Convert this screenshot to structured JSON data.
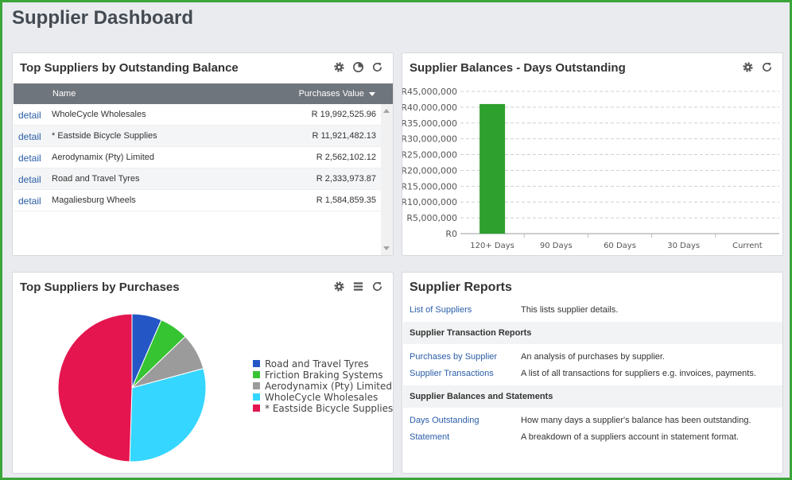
{
  "page": {
    "title": "Supplier Dashboard"
  },
  "colors": {
    "accent_border": "#3aa63a",
    "link": "#2a5da8",
    "table_header": "#6f757c",
    "bar": "#2ea02e"
  },
  "top_outstanding": {
    "title": "Top Suppliers by Outstanding Balance",
    "icons": [
      "gear-icon",
      "pie-chart-icon",
      "refresh-icon"
    ],
    "columns": {
      "name": "Name",
      "value": "Purchases Value"
    },
    "rows": [
      {
        "link": "detail",
        "name": "WholeCycle Wholesales",
        "value": "R 19,992,525.96"
      },
      {
        "link": "detail",
        "name": "* Eastside Bicycle Supplies",
        "value": "R 11,921,482.13"
      },
      {
        "link": "detail",
        "name": "Aerodynamix (Pty) Limited",
        "value": "R 2,562,102.12"
      },
      {
        "link": "detail",
        "name": "Road and Travel Tyres",
        "value": "R 2,333,973.87"
      },
      {
        "link": "detail",
        "name": "Magaliesburg Wheels",
        "value": "R 1,584,859.35"
      }
    ]
  },
  "days_outstanding": {
    "title": "Supplier Balances - Days Outstanding",
    "icons": [
      "gear-icon",
      "refresh-icon"
    ]
  },
  "chart_data": [
    {
      "type": "bar",
      "title": "Supplier Balances - Days Outstanding",
      "categories": [
        "120+ Days",
        "90 Days",
        "60 Days",
        "30 Days",
        "Current"
      ],
      "values": [
        41000000,
        0,
        0,
        0,
        0
      ],
      "ylim": [
        0,
        45000000
      ],
      "yticks": [
        "R0",
        "R5,000,000",
        "R10,000,000",
        "R15,000,000",
        "R20,000,000",
        "R25,000,000",
        "R30,000,000",
        "R35,000,000",
        "R40,000,000",
        "R45,000,000"
      ],
      "grid": true,
      "color": "#2ea02e"
    },
    {
      "type": "pie",
      "title": "Top Suppliers by Purchases",
      "legend_position": "right",
      "slices": [
        {
          "name": "Road and Travel Tyres",
          "value": 6.5,
          "color": "#2457c5"
        },
        {
          "name": "Friction Braking Systems",
          "value": 6.3,
          "color": "#36c432"
        },
        {
          "name": "Aerodynamix (Pty) Limited",
          "value": 8.0,
          "color": "#9b9b9b"
        },
        {
          "name": "WholeCycle Wholesales",
          "value": 29.7,
          "color": "#35d6ff"
        },
        {
          "name": "* Eastside Bicycle Supplies",
          "value": 49.5,
          "color": "#e4154f"
        }
      ]
    }
  ],
  "top_purchases": {
    "title": "Top Suppliers by Purchases",
    "icons": [
      "gear-icon",
      "list-icon",
      "refresh-icon"
    ]
  },
  "reports": {
    "title": "Supplier Reports",
    "items": [
      {
        "kind": "link",
        "label": "List of Suppliers",
        "desc": "This lists supplier details."
      },
      {
        "kind": "section",
        "label": "Supplier Transaction Reports"
      },
      {
        "kind": "link",
        "label": "Purchases by Supplier",
        "desc": "An analysis of purchases by supplier."
      },
      {
        "kind": "link",
        "label": "Supplier Transactions",
        "desc": "A list of all transactions for suppliers e.g. invoices, payments."
      },
      {
        "kind": "section",
        "label": "Supplier Balances and Statements"
      },
      {
        "kind": "link",
        "label": "Days Outstanding",
        "desc": "How many days a supplier's balance has been outstanding."
      },
      {
        "kind": "link",
        "label": "Statement",
        "desc": "A breakdown of a suppliers account in statement format."
      }
    ]
  }
}
